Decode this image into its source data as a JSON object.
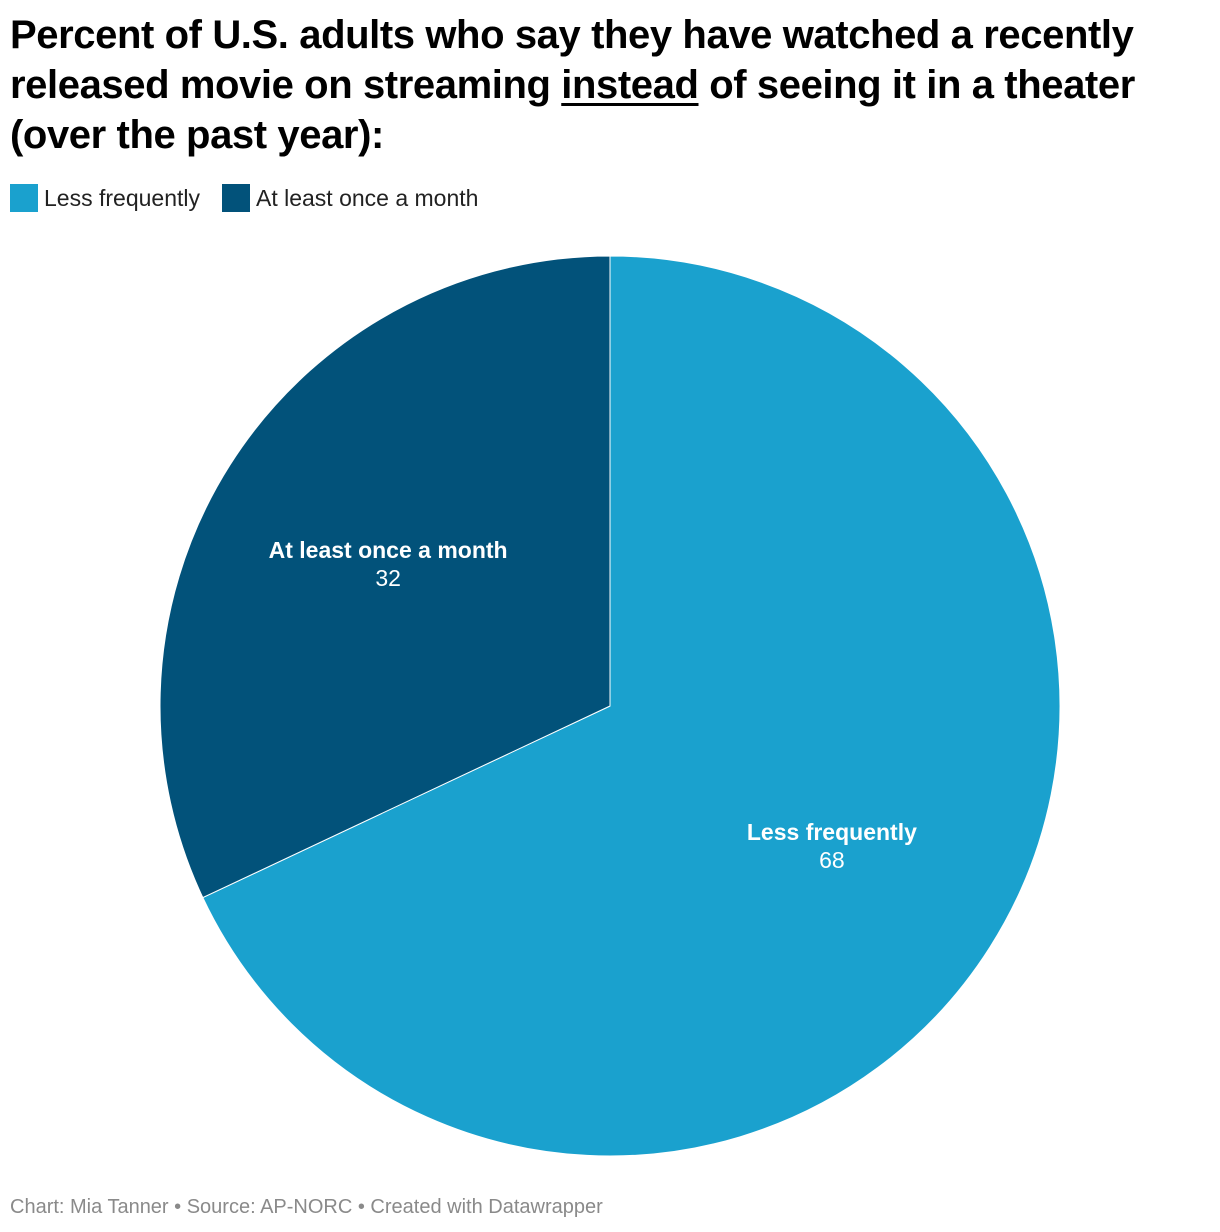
{
  "title": {
    "before": "Percent of U.S. adults who say they have watched a recently released movie on streaming ",
    "underlined": "instead",
    "after": " of seeing it in a theater (over the past year):"
  },
  "legend": [
    {
      "label": "Less frequently",
      "color": "#1aa1ce"
    },
    {
      "label": "At least once a month",
      "color": "#02527a"
    }
  ],
  "chart_data": {
    "type": "pie",
    "title": "Percent of U.S. adults who say they have watched a recently released movie on streaming instead of seeing it in a theater (over the past year):",
    "legend_position": "top-left",
    "slices": [
      {
        "label": "Less frequently",
        "value": 68,
        "color": "#1aa1ce"
      },
      {
        "label": "At least once a month",
        "value": 32,
        "color": "#02527a"
      }
    ]
  },
  "footer": {
    "text": "Chart: Mia Tanner • Source: AP-NORC • Created with Datawrapper"
  }
}
